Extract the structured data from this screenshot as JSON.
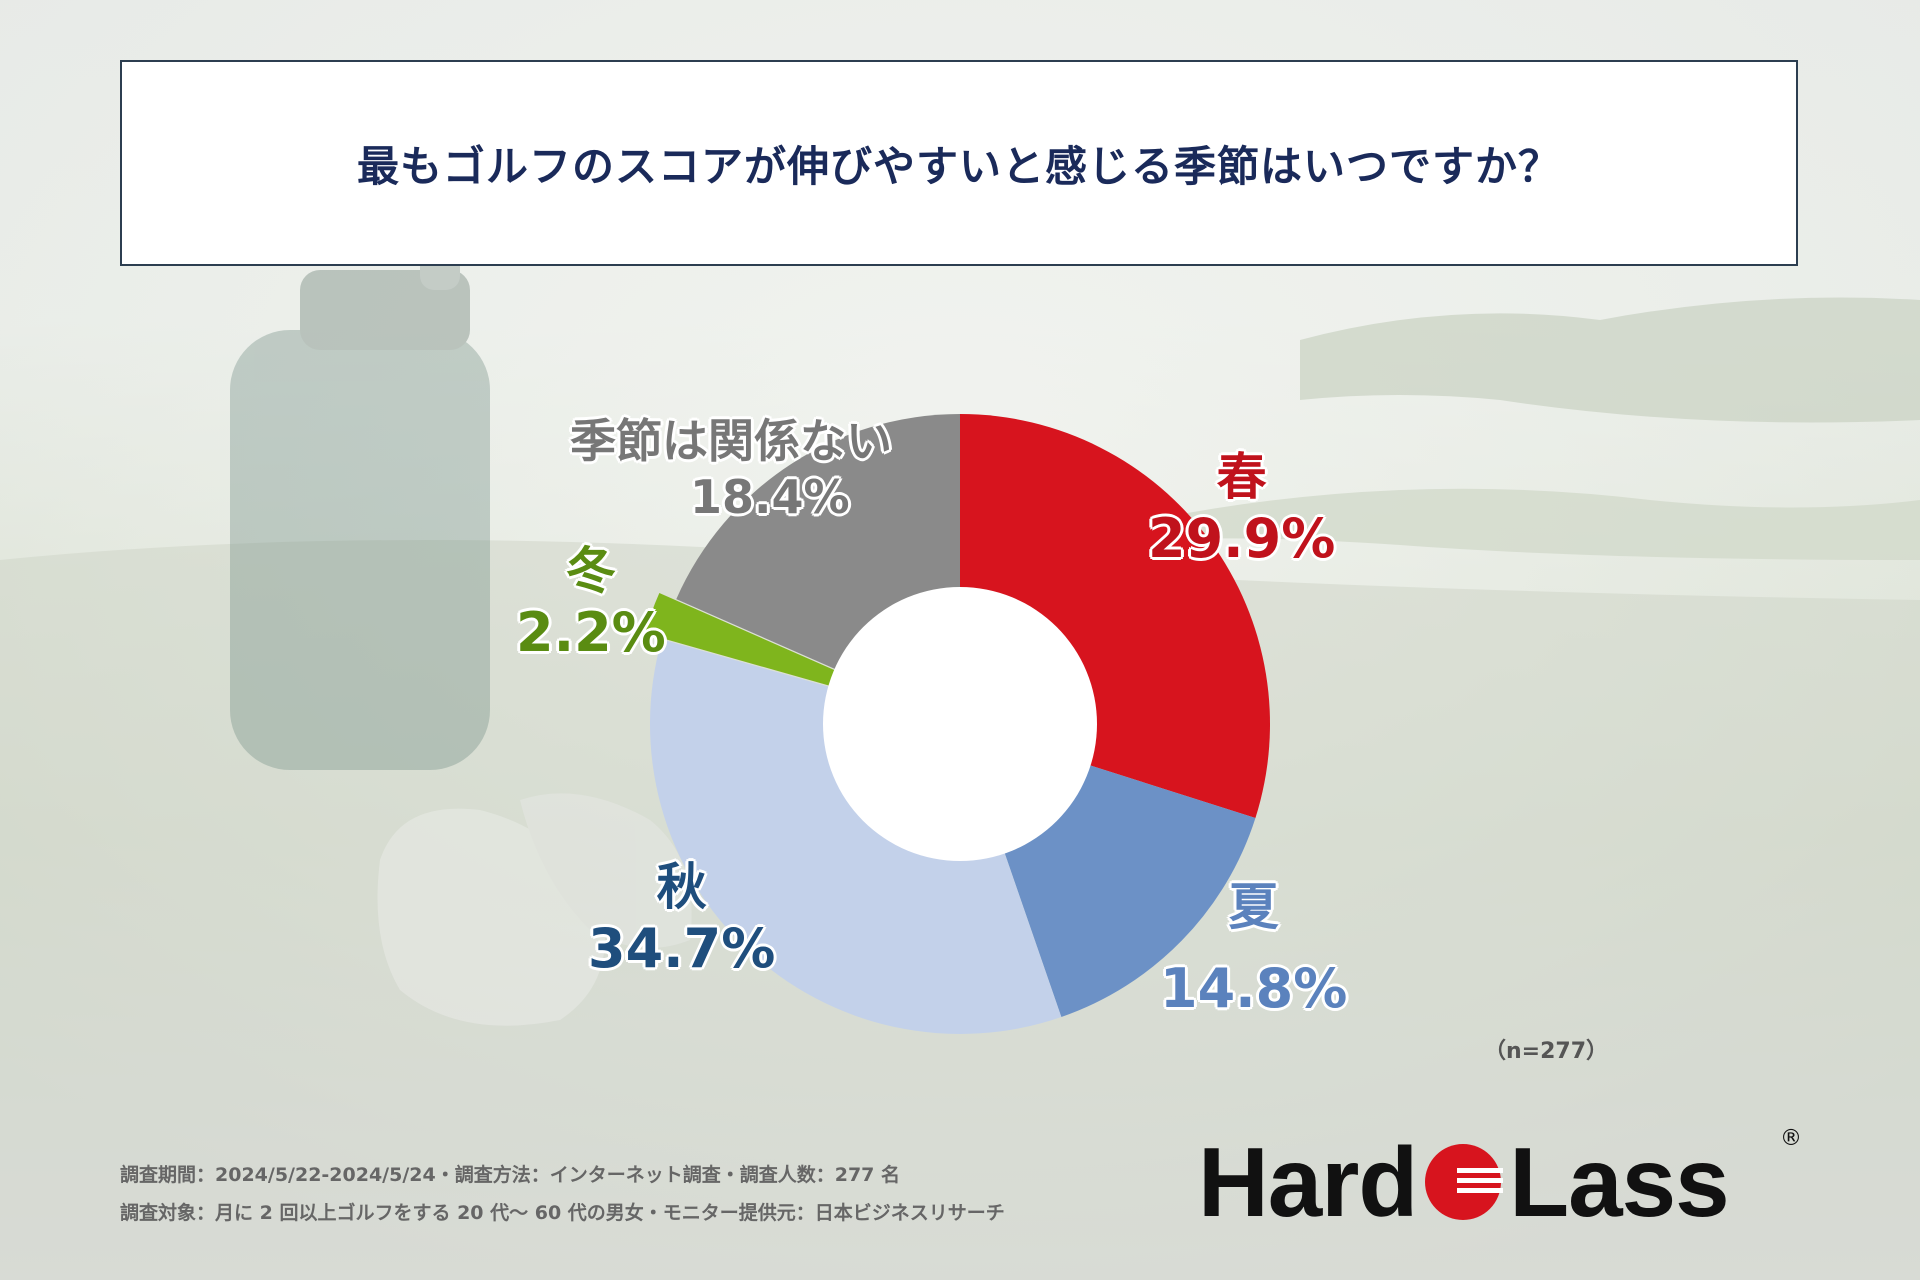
{
  "title": "最もゴルフのスコアが伸びやすいと感じる季節はいつですか？",
  "chart_data": {
    "type": "pie",
    "donut": true,
    "title": "最もゴルフのスコアが伸びやすいと感じる季節はいつですか？",
    "slices": [
      {
        "label": "春",
        "value": 29.9,
        "display": "29.9%",
        "color": "#d7141e",
        "label_color": "#c0121c"
      },
      {
        "label": "夏",
        "value": 14.8,
        "display": "14.8%",
        "color": "#6c91c6",
        "label_color": "#5b82bd"
      },
      {
        "label": "秋",
        "value": 34.7,
        "display": "34.7%",
        "color": "#c3d1ea",
        "label_color": "#1f4e7d"
      },
      {
        "label": "冬",
        "value": 2.2,
        "display": "2.2%",
        "color": "#7fb51d",
        "label_color": "#5a8c12"
      },
      {
        "label": "季節は関係ない",
        "value": 18.4,
        "display": "18.4%",
        "color": "#8a8a8a",
        "label_color": "#777777"
      }
    ]
  },
  "sample_note": "（n=277）",
  "footer": {
    "line1": "調査期間：2024/5/22-2024/5/24・調査方法：インターネット調査・調査人数：277 名",
    "line2": "調査対象：月に 2 回以上ゴルフをする 20 代〜 60 代の男女・モニター提供元：日本ビジネスリサーチ"
  },
  "logo": {
    "left": "Hard",
    "right": "Lass",
    "reg": "®",
    "mark_color": "#d7141e"
  }
}
